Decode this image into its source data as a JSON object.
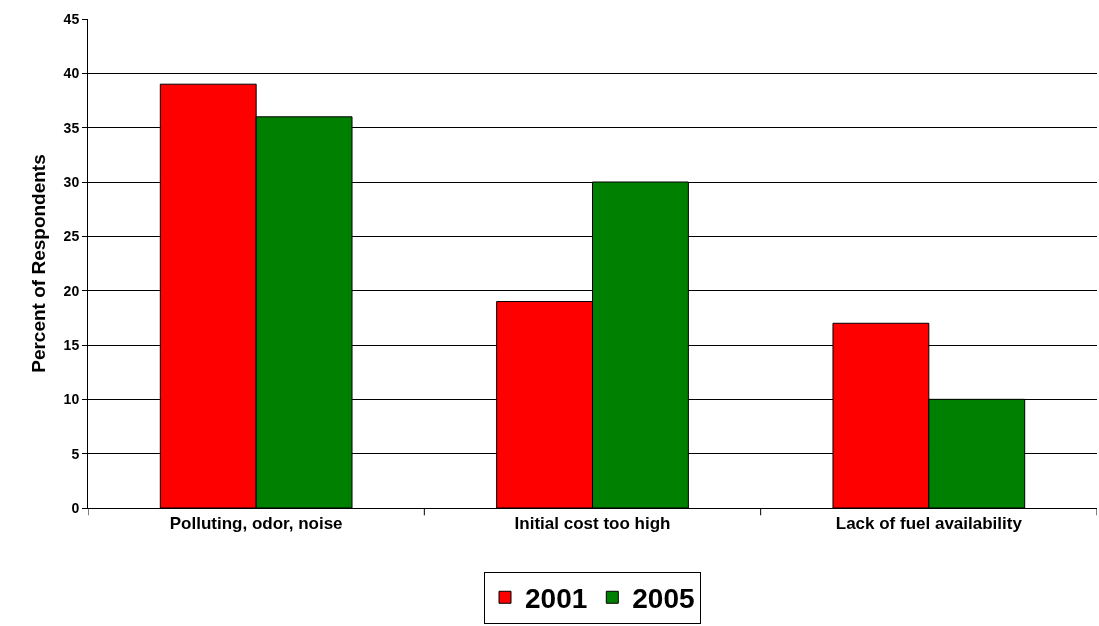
{
  "chart_data": {
    "type": "bar",
    "ylabel": "Percent of Respondents",
    "categories": [
      "Polluting, odor, noise",
      "Initial cost too high",
      "Lack of fuel availability"
    ],
    "series": [
      {
        "name": "2001",
        "color": "#ff0000",
        "values": [
          39,
          19,
          17
        ]
      },
      {
        "name": "2005",
        "color": "#008000",
        "values": [
          36,
          30,
          10
        ]
      }
    ],
    "ylim": [
      0,
      45
    ],
    "yticks": [
      0,
      5,
      10,
      15,
      20,
      25,
      30,
      35,
      40,
      45
    ],
    "grid": "y",
    "legend": "bottom"
  }
}
